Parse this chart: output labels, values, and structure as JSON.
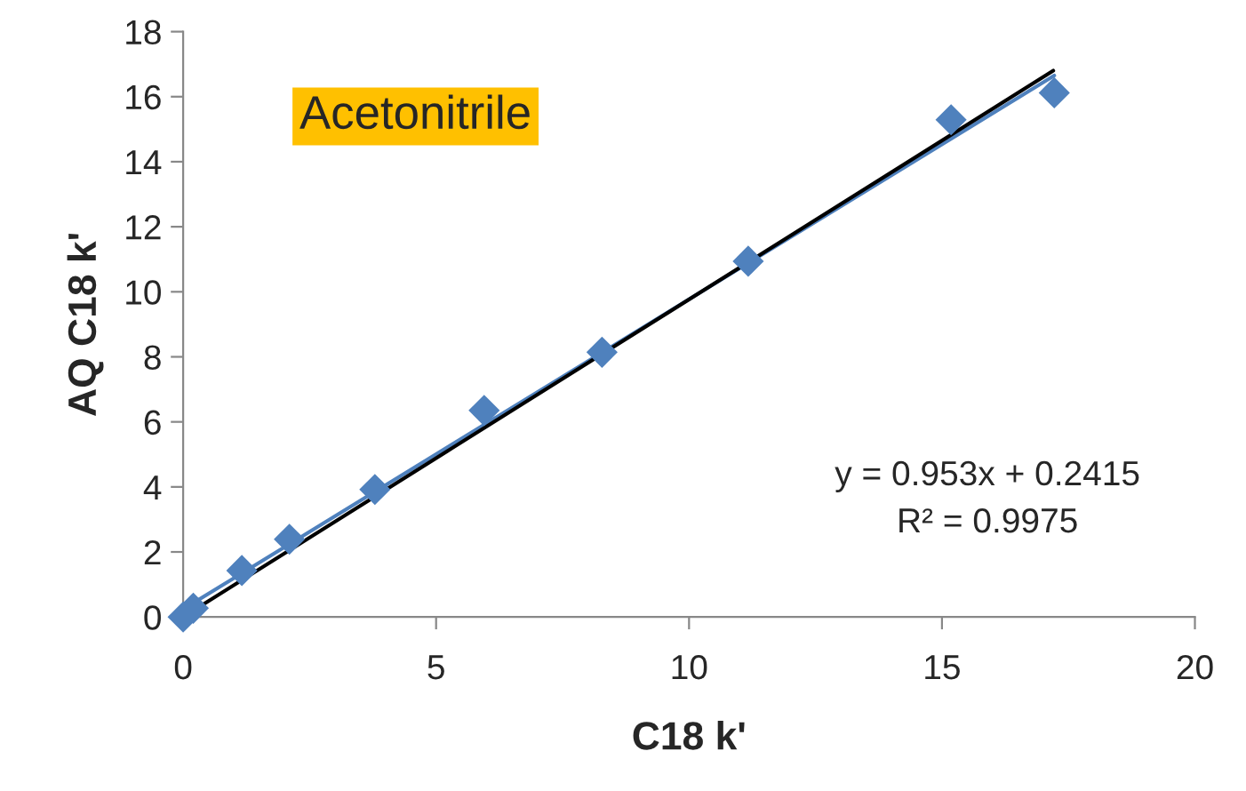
{
  "chart_data": {
    "type": "scatter",
    "xlabel": "C18 k'",
    "ylabel": "AQ C18 k'",
    "annotations": [
      "Acetonitrile",
      "y = 0.953x + 0.2415\nR² = 0.9975"
    ],
    "series": [
      {
        "color": "#4f81bd",
        "marker": "diamond",
        "x": [
          0,
          0.2,
          1.16,
          2.1,
          3.79,
          5.95,
          8.28,
          11.17,
          15.18,
          17.22
        ],
        "values": [
          0,
          0.27,
          1.43,
          2.39,
          3.92,
          6.35,
          8.14,
          10.94,
          15.29,
          16.12
        ]
      },
      {
        "type": "line",
        "color": "#4f81bd",
        "x": [
          0,
          17.22
        ],
        "values": [
          0.24,
          16.65
        ]
      },
      {
        "type": "line",
        "color": "#000000",
        "x": [
          0,
          17.2
        ],
        "values": [
          0,
          16.8
        ]
      }
    ],
    "line_style": "solid",
    "xlim": [
      0,
      20
    ],
    "xticks": [
      0,
      5,
      10,
      15,
      20
    ],
    "ylim": [
      0,
      18
    ],
    "yticks": [
      0,
      2,
      4,
      6,
      8,
      10,
      12,
      14,
      16,
      18
    ],
    "grid": false,
    "legend": false
  }
}
